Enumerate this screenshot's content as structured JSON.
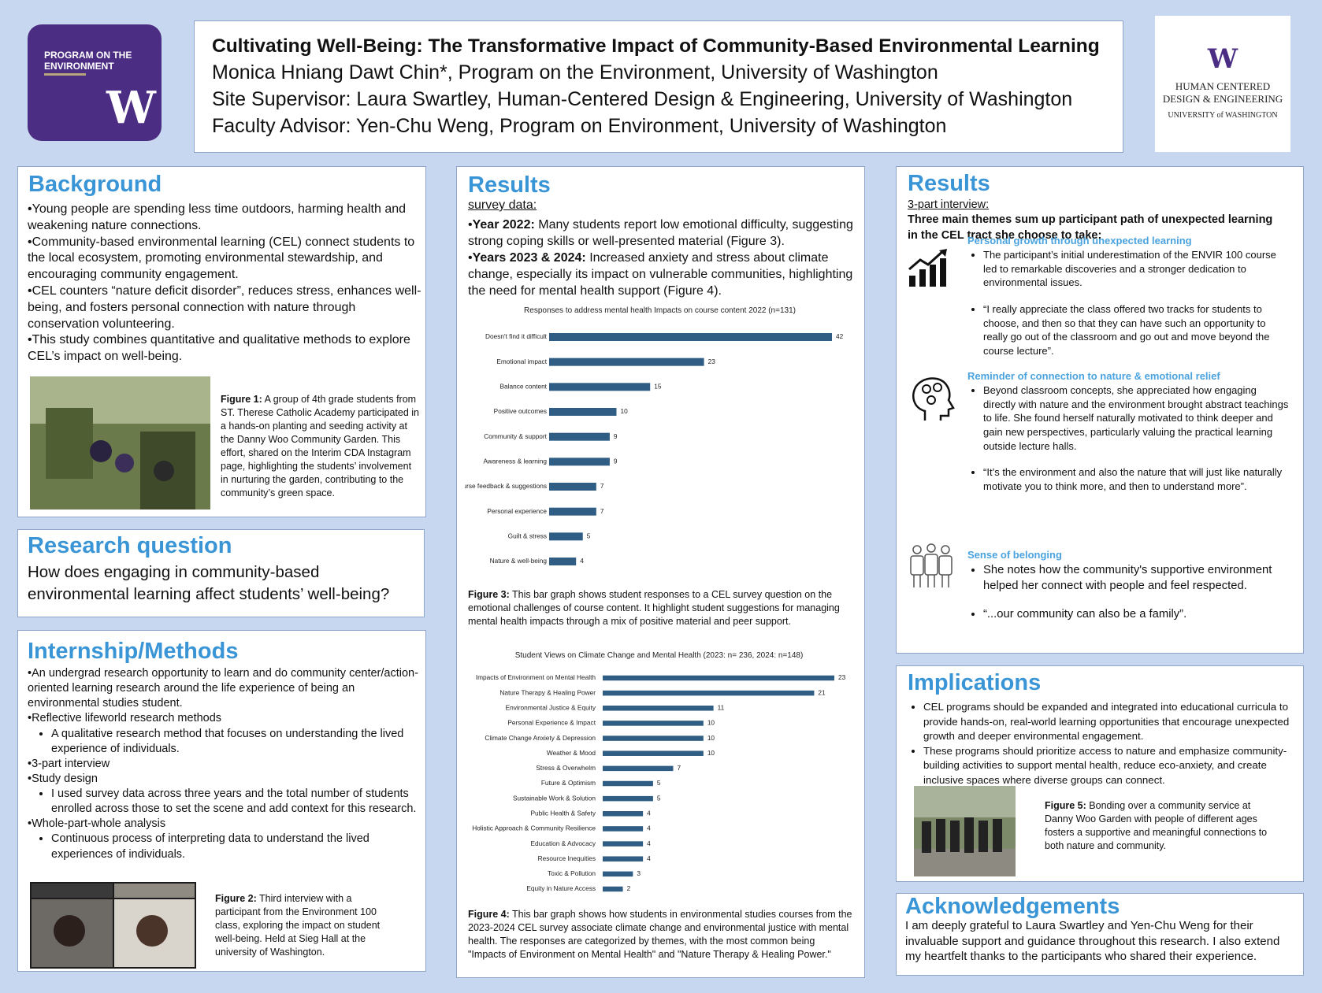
{
  "header": {
    "title": "Cultivating Well-Being: The Transformative Impact of Community-Based Environmental Learning",
    "authors": [
      "Monica Hniang Dawt Chin*, Program on the Environment, University of Washington",
      "Site Supervisor: Laura Swartley, Human-Centered Design & Engineering, University of Washington",
      "Faculty Advisor: Yen-Chu Weng, Program on Environment, University of Washington"
    ]
  },
  "logos": {
    "left_name": "PROGRAM ON THE ENVIRONMENT",
    "left_mark": "W",
    "right_mark": "W",
    "right_name": "HUMAN CENTERED DESIGN & ENGINEERING",
    "right_university": "UNIVERSITY of WASHINGTON"
  },
  "background": {
    "heading": "Background",
    "paragraphs": [
      "Young people are spending less time outdoors, harming health and weakening nature connections.",
      "Community-based environmental learning (CEL) connect students to the local ecosystem, promoting environmental stewardship, and encouraging community engagement.",
      "CEL counters “nature deficit disorder”, reduces stress, enhances well-being, and fosters personal connection with nature through conservation volunteering.",
      "This study combines quantitative and qualitative methods to explore CEL’s impact on well-being."
    ],
    "figure": {
      "label": "Figure 1:",
      "text": "A group of 4th grade students from ST. Therese Catholic Academy participated in a hands-on planting and seeding activity at the Danny Woo Community Garden. This effort, shared on the Interim CDA Instagram page, highlighting the students’ involvement in nurturing the garden, contributing to the community’s green space."
    }
  },
  "research_question": {
    "heading": "Research question",
    "text": "How does engaging in community-based environmental learning affect students’ well-being?"
  },
  "methods": {
    "heading": "Internship/Methods",
    "items": [
      {
        "text": "An undergrad research opportunity to learn and do community center/action-oriented learning research around the life experience of being an environmental studies student.",
        "sub": []
      },
      {
        "text": "Reflective lifeworld research methods",
        "sub": [
          "A qualitative research method that focuses on understanding the lived experience of individuals."
        ]
      },
      {
        "text": "3-part interview",
        "sub": []
      },
      {
        "text": "Study design",
        "sub": [
          "I used survey data across three years and the total number of students enrolled across those to set the scene and add context for this research."
        ]
      },
      {
        "text": "Whole-part-whole analysis",
        "sub": [
          "Continuous process of interpreting data to understand the lived experiences of individuals."
        ]
      }
    ],
    "figure": {
      "label": "Figure 2:",
      "text": "Third interview with a participant from the Environment 100 class, exploring the impact on student well-being. Held at Sieg Hall at the university of Washington."
    }
  },
  "results_survey": {
    "heading": "Results",
    "subheading": "survey data:",
    "items": [
      {
        "lead": "Year 2022:",
        "text": "Many students report low emotional difficulty, suggesting strong coping skills or well-presented material (Figure 3)."
      },
      {
        "lead": "Years 2023 & 2024:",
        "text": "Increased anxiety and stress about climate change, especially its impact on vulnerable communities, highlighting the need for mental health support (Figure 4)."
      }
    ],
    "figure3": {
      "label": "Figure 3:",
      "text": "This bar graph shows student responses to a CEL survey question on the emotional challenges of course content. It highlight student suggestions for managing mental health impacts through a mix of positive material and peer support."
    },
    "figure4": {
      "label": "Figure 4:",
      "text": "This bar graph shows how students in environmental studies courses from the 2023-2024 CEL survey associate climate change and environmental justice with mental health. The responses are categorized by themes, with the most common being \"Impacts of Environment on Mental Health\" and \"Nature Therapy & Healing Power.\""
    }
  },
  "results_interview": {
    "heading": "Results",
    "subheading": "3-part interview:",
    "intro": "Three main themes sum up participant path of unexpected learning in the CEL tract she choose to take:",
    "themes": [
      {
        "title": "Personal growth through unexpected learning",
        "points": [
          "The participant’s initial underestimation of the ENVIR 100 course led to remarkable discoveries and a stronger dedication to environmental issues.",
          "“I really appreciate the class offered two tracks for students to choose, and then so that they can have such an opportunity to really go out of the classroom and go out and move beyond the course lecture”."
        ]
      },
      {
        "title": "Reminder of connection to nature & emotional relief",
        "points": [
          "Beyond classroom concepts, she appreciated how engaging directly with nature and the environment brought abstract teachings to life. She found herself naturally motivated to think deeper and gain new perspectives, particularly valuing the practical learning outside lecture halls.",
          "“It’s the environment and also the nature that will just like naturally motivate you to think more, and then to understand more”."
        ]
      },
      {
        "title": "Sense of belonging",
        "points": [
          "She notes how the community's supportive environment helped her connect with people and feel respected.",
          "“...our community can also be a family”."
        ]
      }
    ]
  },
  "implications": {
    "heading": "Implications",
    "items": [
      "CEL programs should be expanded and integrated into educational curricula to provide hands-on, real-world learning opportunities that encourage unexpected growth and deeper environmental engagement.",
      "These programs should prioritize access to nature and emphasize community-building activities to support mental health, reduce eco-anxiety, and create inclusive spaces where diverse groups can connect."
    ],
    "figure": {
      "label": "Figure 5:",
      "text": "Bonding over a community service at Danny Woo Garden with people of different ages fosters a supportive and meaningful connections to both nature and community."
    }
  },
  "acknowledgements": {
    "heading": "Acknowledgements",
    "text": "I am deeply grateful to Laura Swartley and Yen-Chu Weng for their invaluable support and guidance throughout this research. I also extend my heartfelt thanks to the participants who shared their experience."
  },
  "chart_data": [
    {
      "type": "bar",
      "orientation": "horizontal",
      "title": "Responses to address mental health Impacts on course content 2022 (n=131)",
      "categories": [
        "Doesn't find it difficult",
        "Emotional impact",
        "Balance content",
        "Positive outcomes",
        "Community & support",
        "Awareness & learning",
        "Course feedback & suggestions",
        "Personal experience",
        "Guilt & stress",
        "Nature & well-being"
      ],
      "values": [
        42,
        23,
        15,
        10,
        9,
        9,
        7,
        7,
        5,
        4
      ],
      "color": "#2f5d83"
    },
    {
      "type": "bar",
      "orientation": "horizontal",
      "title": "Student Views on Climate Change and Mental Health (2023: n= 236, 2024: n=148)",
      "categories": [
        "Impacts of Environment on Mental Health",
        "Nature Therapy & Healing Power",
        "Environmental Justice & Equity",
        "Personal Experience & Impact",
        "Climate Change Anxiety & Depression",
        "Weather & Mood",
        "Stress & Overwhelm",
        "Future & Optimism",
        "Sustainable Work & Solution",
        "Public Health & Safety",
        "Holistic Approach & Community Resilience",
        "Education & Advocacy",
        "Resource Inequities",
        "Toxic & Pollution",
        "Equity in Nature Access"
      ],
      "values": [
        23,
        21,
        11,
        10,
        10,
        10,
        7,
        5,
        5,
        4,
        4,
        4,
        4,
        3,
        2
      ],
      "color": "#2f5d83"
    }
  ]
}
